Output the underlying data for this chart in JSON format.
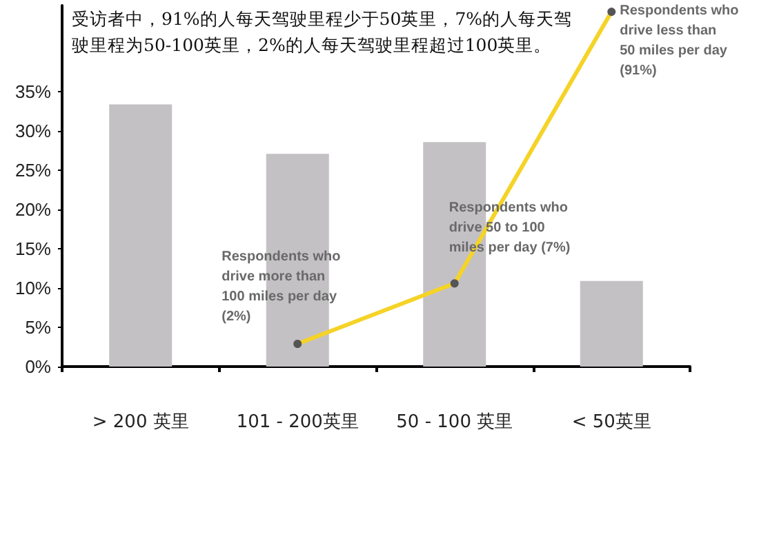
{
  "chart_data": {
    "type": "bar",
    "title": "受访者中，91%的人每天驾驶里程少于50英里，7%的人每天驾驶里程为50-100英里，2%的人每天驾驶里程超过100英里。",
    "categories": [
      "> 200 英里",
      "101 - 200英里",
      "50 - 100 英里",
      "< 50英里"
    ],
    "series": [
      {
        "color": "#c4c1c4",
        "values": [
          33.4,
          27.1,
          28.6,
          10.9
        ]
      },
      {
        "type": "line",
        "color": "#f5d327",
        "values": [
          null,
          2.9,
          10.6,
          45.2
        ],
        "marker": "circle"
      }
    ],
    "ylim": [
      0,
      46
    ],
    "yticks": [
      {
        "value": 0,
        "label": "0%"
      },
      {
        "value": 5,
        "label": "5%"
      },
      {
        "value": 10,
        "label": "10%"
      },
      {
        "value": 15,
        "label": "15%"
      },
      {
        "value": 20,
        "label": "20%"
      },
      {
        "value": 25,
        "label": "25%"
      },
      {
        "value": 30,
        "label": "30%"
      },
      {
        "value": 35,
        "label": "35%"
      }
    ],
    "grid": false,
    "annotations": [
      {
        "text": "Respondents who drive more than 100 miles per day (2%)",
        "x": "101 - 200英里",
        "y": 2.9
      },
      {
        "text": "Respondents who drive 50 to 100 miles per day (7%)",
        "x": "50 - 100 英里",
        "y": 10.6
      },
      {
        "text": "Respondents who drive less than 50 miles per day (91%)",
        "x": "< 50英里",
        "y": 45.2
      }
    ]
  }
}
